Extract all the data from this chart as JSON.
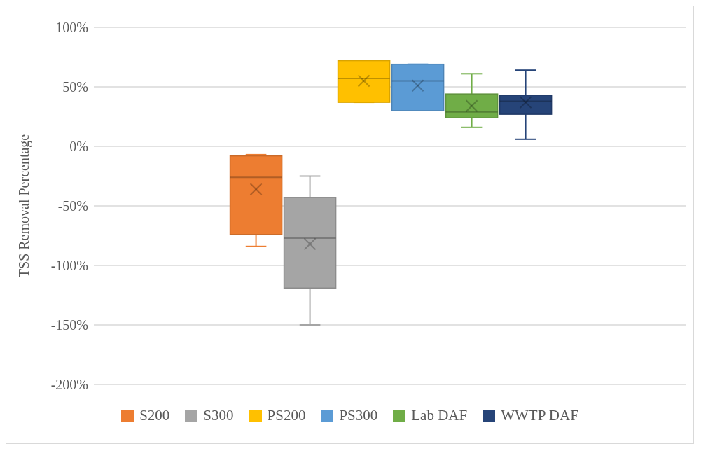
{
  "chart_data": {
    "type": "box",
    "ylabel": "TSS Removal Percentage",
    "categories": [
      null
    ],
    "series": [
      {
        "name": "S200",
        "color": "#ed7d31",
        "boxes": [
          {
            "low": -84,
            "q1": -74,
            "median": -26,
            "q3": -8,
            "high": -7,
            "mean": -36
          }
        ]
      },
      {
        "name": "S300",
        "color": "#a5a5a5",
        "boxes": [
          {
            "low": -150,
            "q1": -119,
            "median": -77,
            "q3": -43,
            "high": -25,
            "mean": -82
          }
        ]
      },
      {
        "name": "PS200",
        "color": "#ffc000",
        "boxes": [
          {
            "low": 37,
            "q1": 37,
            "median": 57,
            "q3": 72,
            "high": 72,
            "mean": 55
          }
        ]
      },
      {
        "name": "PS300",
        "color": "#5b9bd5",
        "boxes": [
          {
            "low": 30,
            "q1": 30,
            "median": 55,
            "q3": 69,
            "high": 69,
            "mean": 51
          }
        ]
      },
      {
        "name": "Lab DAF",
        "color": "#70ad47",
        "boxes": [
          {
            "low": 16,
            "q1": 24,
            "median": 29,
            "q3": 44,
            "high": 61,
            "mean": 34
          }
        ]
      },
      {
        "name": "WWTP DAF",
        "color": "#264478",
        "boxes": [
          {
            "low": 6,
            "q1": 27,
            "median": 38,
            "q3": 43,
            "high": 64,
            "mean": 37
          }
        ]
      }
    ],
    "ylim": [
      -200,
      100
    ],
    "yticks": [
      {
        "value": -200,
        "label": "-200%"
      },
      {
        "value": -150,
        "label": "-150%"
      },
      {
        "value": -100,
        "label": "-100%"
      },
      {
        "value": -50,
        "label": "-50%"
      },
      {
        "value": 0,
        "label": "0%"
      },
      {
        "value": 50,
        "label": "50%"
      },
      {
        "value": 100,
        "label": "100%"
      }
    ],
    "grid": "y",
    "legend": "bottom",
    "tick_labels": "y"
  }
}
